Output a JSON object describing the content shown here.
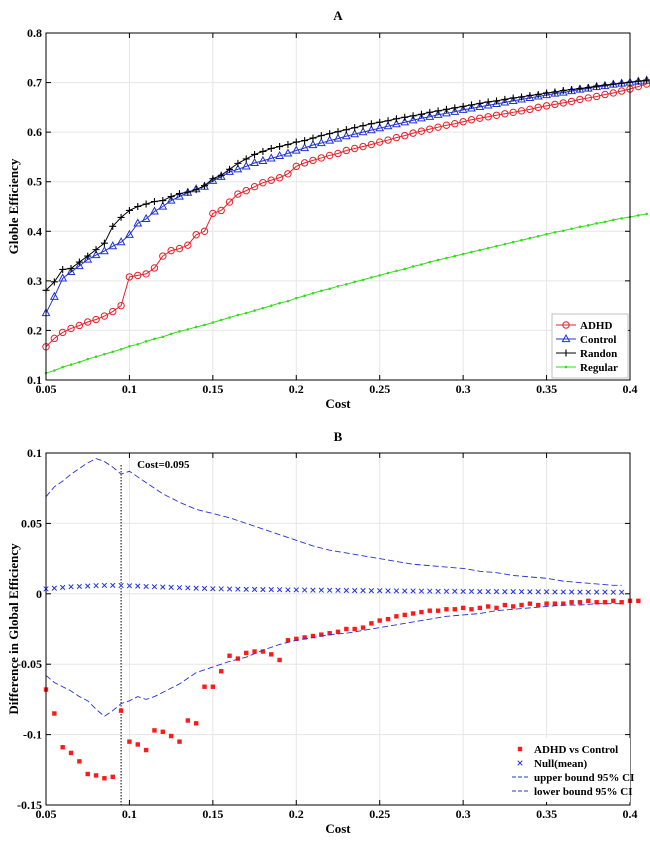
{
  "chart_data": [
    {
      "id": "A",
      "type": "line",
      "title": "A",
      "xlabel": "Cost",
      "ylabel": "Globle Efficiency",
      "xlim": [
        0.05,
        0.4
      ],
      "ylim": [
        0.1,
        0.8
      ],
      "xticks": [
        0.05,
        0.1,
        0.15,
        0.2,
        0.25,
        0.3,
        0.35,
        0.4
      ],
      "yticks": [
        0.1,
        0.2,
        0.3,
        0.4,
        0.5,
        0.6,
        0.7,
        0.8
      ],
      "xtick_labels": [
        "0.05",
        "0.1",
        "0.15",
        "0.2",
        "0.25",
        "0.3",
        "0.35",
        "0.4"
      ],
      "ytick_labels": [
        "0.1",
        "0.2",
        "0.3",
        "0.4",
        "0.5",
        "0.6",
        "0.7",
        "0.8"
      ],
      "grid": true,
      "legend_position": "bottom-right",
      "x_start": 0.05,
      "x_step": 0.005,
      "series": [
        {
          "name": "ADHD",
          "color": "#e8212b",
          "marker": "circle",
          "values": [
            0.167,
            0.184,
            0.196,
            0.204,
            0.21,
            0.217,
            0.222,
            0.229,
            0.238,
            0.25,
            0.308,
            0.311,
            0.314,
            0.326,
            0.35,
            0.361,
            0.365,
            0.372,
            0.393,
            0.4,
            0.436,
            0.442,
            0.459,
            0.475,
            0.482,
            0.49,
            0.498,
            0.503,
            0.508,
            0.516,
            0.531,
            0.538,
            0.543,
            0.548,
            0.553,
            0.557,
            0.563,
            0.567,
            0.571,
            0.575,
            0.58,
            0.584,
            0.589,
            0.593,
            0.598,
            0.602,
            0.606,
            0.61,
            0.614,
            0.617,
            0.621,
            0.625,
            0.628,
            0.631,
            0.634,
            0.637,
            0.64,
            0.643,
            0.646,
            0.65,
            0.653,
            0.656,
            0.659,
            0.662,
            0.666,
            0.669,
            0.672,
            0.676,
            0.679,
            0.683,
            0.687,
            0.692,
            0.697
          ]
        },
        {
          "name": "Control",
          "color": "#2233d6",
          "marker": "triangle",
          "values": [
            0.235,
            0.268,
            0.305,
            0.318,
            0.33,
            0.343,
            0.352,
            0.36,
            0.37,
            0.378,
            0.393,
            0.416,
            0.425,
            0.44,
            0.45,
            0.462,
            0.47,
            0.478,
            0.485,
            0.49,
            0.502,
            0.51,
            0.52,
            0.525,
            0.531,
            0.538,
            0.542,
            0.547,
            0.552,
            0.557,
            0.563,
            0.568,
            0.574,
            0.578,
            0.583,
            0.587,
            0.592,
            0.596,
            0.6,
            0.604,
            0.608,
            0.612,
            0.616,
            0.62,
            0.624,
            0.628,
            0.631,
            0.635,
            0.638,
            0.641,
            0.645,
            0.648,
            0.651,
            0.654,
            0.657,
            0.66,
            0.663,
            0.666,
            0.669,
            0.672,
            0.675,
            0.678,
            0.68,
            0.683,
            0.686,
            0.688,
            0.691,
            0.693,
            0.696,
            0.698,
            0.7,
            0.702,
            0.704
          ]
        },
        {
          "name": "Randon",
          "color": "#000000",
          "marker": "plus",
          "values": [
            0.281,
            0.298,
            0.323,
            0.325,
            0.338,
            0.35,
            0.363,
            0.376,
            0.41,
            0.428,
            0.442,
            0.45,
            0.455,
            0.46,
            0.462,
            0.47,
            0.476,
            0.479,
            0.484,
            0.492,
            0.506,
            0.513,
            0.525,
            0.537,
            0.546,
            0.555,
            0.561,
            0.567,
            0.571,
            0.575,
            0.58,
            0.583,
            0.588,
            0.593,
            0.597,
            0.601,
            0.605,
            0.609,
            0.613,
            0.617,
            0.62,
            0.623,
            0.627,
            0.63,
            0.633,
            0.636,
            0.64,
            0.643,
            0.646,
            0.649,
            0.652,
            0.655,
            0.658,
            0.661,
            0.663,
            0.666,
            0.669,
            0.671,
            0.674,
            0.676,
            0.679,
            0.681,
            0.684,
            0.686,
            0.688,
            0.69,
            0.693,
            0.695,
            0.697,
            0.699,
            0.701,
            0.703,
            0.705
          ]
        },
        {
          "name": "Regular",
          "color": "#33dd1a",
          "marker": "dot",
          "values": [
            0.114,
            0.119,
            0.126,
            0.131,
            0.136,
            0.142,
            0.147,
            0.152,
            0.157,
            0.162,
            0.168,
            0.172,
            0.178,
            0.183,
            0.187,
            0.193,
            0.198,
            0.202,
            0.207,
            0.211,
            0.216,
            0.221,
            0.226,
            0.231,
            0.235,
            0.24,
            0.245,
            0.25,
            0.255,
            0.259,
            0.265,
            0.27,
            0.275,
            0.28,
            0.284,
            0.289,
            0.293,
            0.298,
            0.302,
            0.307,
            0.311,
            0.316,
            0.32,
            0.324,
            0.329,
            0.333,
            0.338,
            0.342,
            0.346,
            0.35,
            0.354,
            0.358,
            0.362,
            0.366,
            0.37,
            0.374,
            0.378,
            0.382,
            0.386,
            0.39,
            0.394,
            0.398,
            0.401,
            0.405,
            0.409,
            0.412,
            0.416,
            0.419,
            0.423,
            0.426,
            0.429,
            0.432,
            0.435
          ]
        }
      ]
    },
    {
      "id": "B",
      "type": "scatter",
      "title": "B",
      "xlabel": "Cost",
      "ylabel": "Difference in Global Efficiency",
      "xlim": [
        0.05,
        0.4
      ],
      "ylim": [
        -0.15,
        0.1
      ],
      "xticks": [
        0.05,
        0.1,
        0.15,
        0.2,
        0.25,
        0.3,
        0.35,
        0.4
      ],
      "yticks": [
        -0.15,
        -0.1,
        -0.05,
        0,
        0.05,
        0.1
      ],
      "xtick_labels": [
        "0.05",
        "0.1",
        "0.15",
        "0.2",
        "0.25",
        "0.3",
        "0.35",
        "0.4"
      ],
      "ytick_labels": [
        "-0.15",
        "-0.1",
        "-0.05",
        "0",
        "0.05",
        "0.1"
      ],
      "grid": true,
      "legend_position": "bottom-right",
      "annotation": {
        "text": "Cost=0.095",
        "x": 0.095
      },
      "x_start": 0.05,
      "x_step": 0.005,
      "series": [
        {
          "name": "ADHD vs Control",
          "color": "#ff1a1a",
          "marker": "square",
          "values": [
            -0.068,
            -0.085,
            -0.109,
            -0.113,
            -0.119,
            -0.128,
            -0.129,
            -0.131,
            -0.13,
            -0.083,
            -0.105,
            -0.107,
            -0.111,
            -0.097,
            -0.098,
            -0.101,
            -0.105,
            -0.09,
            -0.092,
            -0.066,
            -0.066,
            -0.055,
            -0.044,
            -0.046,
            -0.042,
            -0.041,
            -0.041,
            -0.043,
            -0.047,
            -0.033,
            -0.032,
            -0.031,
            -0.03,
            -0.029,
            -0.028,
            -0.027,
            -0.025,
            -0.025,
            -0.024,
            -0.021,
            -0.019,
            -0.018,
            -0.016,
            -0.015,
            -0.014,
            -0.013,
            -0.012,
            -0.012,
            -0.011,
            -0.011,
            -0.01,
            -0.011,
            -0.01,
            -0.009,
            -0.01,
            -0.008,
            -0.009,
            -0.008,
            -0.007,
            -0.008,
            -0.007,
            -0.007,
            -0.007,
            -0.006,
            -0.006,
            -0.005,
            -0.006,
            -0.006,
            -0.005,
            -0.006,
            -0.005,
            -0.005
          ]
        },
        {
          "name": "Null(mean)",
          "color": "#2233d6",
          "marker": "x",
          "values": [
            0.0035,
            0.004,
            0.0045,
            0.005,
            0.0052,
            0.0055,
            0.0058,
            0.006,
            0.006,
            0.0059,
            0.0057,
            0.0055,
            0.0052,
            0.005,
            0.0048,
            0.0046,
            0.0044,
            0.0042,
            0.004,
            0.0038,
            0.0036,
            0.0035,
            0.0034,
            0.0033,
            0.0032,
            0.0031,
            0.003,
            0.003,
            0.0029,
            0.0028,
            0.0028,
            0.0027,
            0.0026,
            0.0026,
            0.0025,
            0.0025,
            0.0024,
            0.0023,
            0.0023,
            0.0022,
            0.0022,
            0.0021,
            0.0021,
            0.002,
            0.002,
            0.0019,
            0.0019,
            0.0018,
            0.0018,
            0.0018,
            0.0017,
            0.0017,
            0.0016,
            0.0016,
            0.0016,
            0.0015,
            0.0015,
            0.0015,
            0.0014,
            0.0014,
            0.0014,
            0.0013,
            0.0013,
            0.0013,
            0.0012,
            0.0012,
            0.0012,
            0.0012,
            0.0011,
            0.0011
          ]
        },
        {
          "name": "upper bound 95% CI",
          "color": "#2233d6",
          "line": "dashed",
          "points": [
            [
              0.05,
              0.069
            ],
            [
              0.055,
              0.076
            ],
            [
              0.06,
              0.08
            ],
            [
              0.065,
              0.085
            ],
            [
              0.07,
              0.089
            ],
            [
              0.075,
              0.093
            ],
            [
              0.08,
              0.096
            ],
            [
              0.085,
              0.094
            ],
            [
              0.09,
              0.09
            ],
            [
              0.095,
              0.085
            ],
            [
              0.1,
              0.087
            ],
            [
              0.105,
              0.083
            ],
            [
              0.11,
              0.079
            ],
            [
              0.12,
              0.071
            ],
            [
              0.13,
              0.065
            ],
            [
              0.14,
              0.06
            ],
            [
              0.15,
              0.057
            ],
            [
              0.16,
              0.054
            ],
            [
              0.17,
              0.05
            ],
            [
              0.18,
              0.046
            ],
            [
              0.19,
              0.042
            ],
            [
              0.2,
              0.038
            ],
            [
              0.21,
              0.034
            ],
            [
              0.22,
              0.031
            ],
            [
              0.23,
              0.029
            ],
            [
              0.24,
              0.027
            ],
            [
              0.25,
              0.025
            ],
            [
              0.26,
              0.023
            ],
            [
              0.27,
              0.021
            ],
            [
              0.28,
              0.02
            ],
            [
              0.29,
              0.019
            ],
            [
              0.3,
              0.018
            ],
            [
              0.31,
              0.016
            ],
            [
              0.32,
              0.015
            ],
            [
              0.33,
              0.013
            ],
            [
              0.34,
              0.012
            ],
            [
              0.35,
              0.011
            ],
            [
              0.36,
              0.009
            ],
            [
              0.37,
              0.008
            ],
            [
              0.38,
              0.007
            ],
            [
              0.39,
              0.006
            ],
            [
              0.395,
              0.006
            ]
          ]
        },
        {
          "name": "lower bound 95% CI",
          "color": "#2233d6",
          "line": "dashed",
          "points": [
            [
              0.05,
              -0.058
            ],
            [
              0.055,
              -0.063
            ],
            [
              0.06,
              -0.066
            ],
            [
              0.065,
              -0.069
            ],
            [
              0.07,
              -0.073
            ],
            [
              0.075,
              -0.076
            ],
            [
              0.08,
              -0.082
            ],
            [
              0.085,
              -0.087
            ],
            [
              0.09,
              -0.083
            ],
            [
              0.095,
              -0.078
            ],
            [
              0.1,
              -0.076
            ],
            [
              0.105,
              -0.073
            ],
            [
              0.11,
              -0.075
            ],
            [
              0.115,
              -0.073
            ],
            [
              0.12,
              -0.07
            ],
            [
              0.13,
              -0.064
            ],
            [
              0.14,
              -0.056
            ],
            [
              0.15,
              -0.052
            ],
            [
              0.16,
              -0.048
            ],
            [
              0.17,
              -0.045
            ],
            [
              0.18,
              -0.04
            ],
            [
              0.19,
              -0.036
            ],
            [
              0.2,
              -0.033
            ],
            [
              0.21,
              -0.031
            ],
            [
              0.22,
              -0.029
            ],
            [
              0.23,
              -0.028
            ],
            [
              0.24,
              -0.026
            ],
            [
              0.25,
              -0.024
            ],
            [
              0.26,
              -0.022
            ],
            [
              0.27,
              -0.02
            ],
            [
              0.28,
              -0.018
            ],
            [
              0.29,
              -0.016
            ],
            [
              0.3,
              -0.015
            ],
            [
              0.31,
              -0.014
            ],
            [
              0.32,
              -0.012
            ],
            [
              0.33,
              -0.011
            ],
            [
              0.34,
              -0.01
            ],
            [
              0.35,
              -0.009
            ],
            [
              0.36,
              -0.008
            ],
            [
              0.37,
              -0.008
            ],
            [
              0.38,
              -0.007
            ],
            [
              0.39,
              -0.007
            ],
            [
              0.395,
              -0.007
            ]
          ]
        }
      ]
    }
  ]
}
